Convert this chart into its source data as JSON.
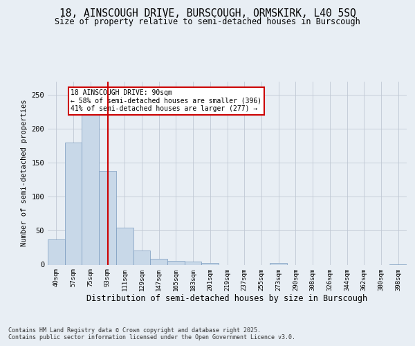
{
  "title_line1": "18, AINSCOUGH DRIVE, BURSCOUGH, ORMSKIRK, L40 5SQ",
  "title_line2": "Size of property relative to semi-detached houses in Burscough",
  "xlabel": "Distribution of semi-detached houses by size in Burscough",
  "ylabel": "Number of semi-detached properties",
  "categories": [
    "40sqm",
    "57sqm",
    "75sqm",
    "93sqm",
    "111sqm",
    "129sqm",
    "147sqm",
    "165sqm",
    "183sqm",
    "201sqm",
    "219sqm",
    "237sqm",
    "255sqm",
    "273sqm",
    "290sqm",
    "308sqm",
    "326sqm",
    "344sqm",
    "362sqm",
    "380sqm",
    "398sqm"
  ],
  "values": [
    37,
    180,
    222,
    138,
    55,
    21,
    9,
    6,
    5,
    3,
    0,
    0,
    0,
    3,
    0,
    0,
    0,
    0,
    0,
    0,
    1
  ],
  "bar_color": "#c8d8e8",
  "bar_edge_color": "#7a9bbf",
  "highlight_index": 3,
  "highlight_line_color": "#cc0000",
  "annotation_text": "18 AINSCOUGH DRIVE: 90sqm\n← 58% of semi-detached houses are smaller (396)\n41% of semi-detached houses are larger (277) →",
  "annotation_box_color": "#ffffff",
  "annotation_box_edge": "#cc0000",
  "ylim": [
    0,
    270
  ],
  "yticks": [
    0,
    50,
    100,
    150,
    200,
    250
  ],
  "footer": "Contains HM Land Registry data © Crown copyright and database right 2025.\nContains public sector information licensed under the Open Government Licence v3.0.",
  "background_color": "#e8eef4",
  "plot_bg_color": "#e8eef4",
  "grid_color": "#c0c8d4"
}
